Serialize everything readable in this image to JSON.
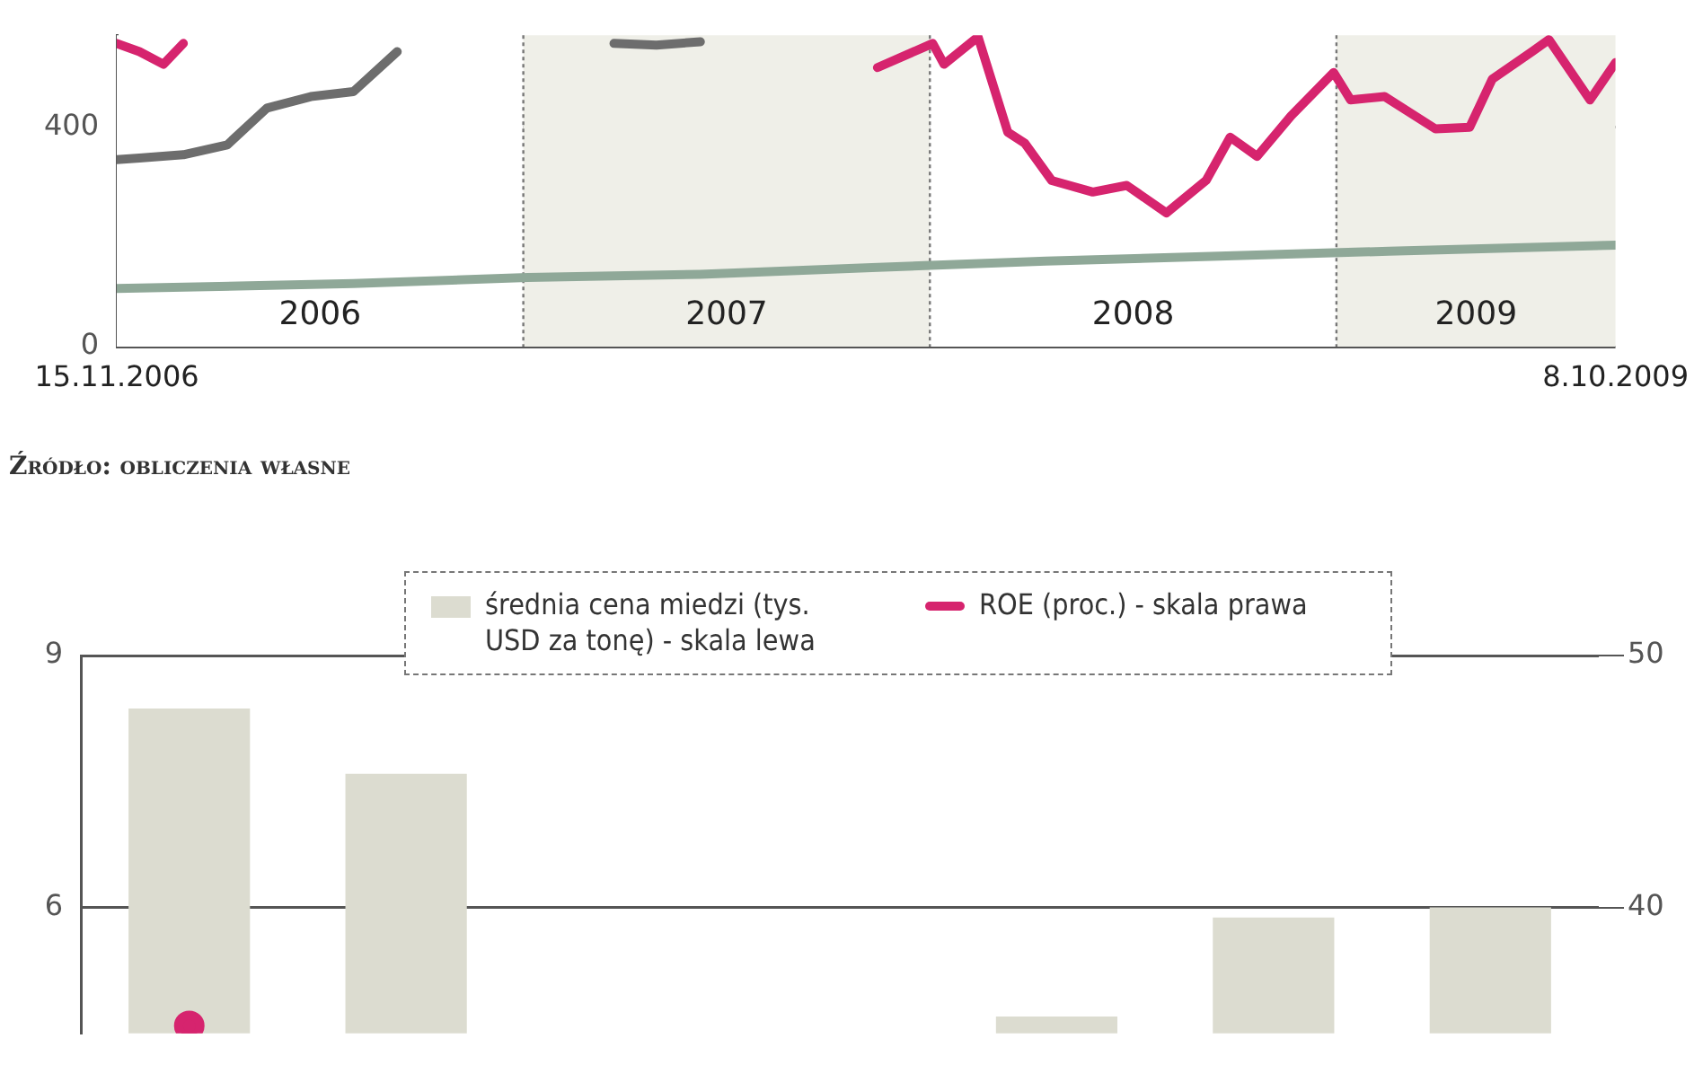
{
  "chart_data": [
    {
      "type": "line",
      "xlim": [
        "2006-11-15",
        "2009-10-08"
      ],
      "xticks": [
        {
          "value": "2006-11-15",
          "label": "15.11.2006"
        },
        {
          "value": "2009-10-08",
          "label": "8.10.2009"
        }
      ],
      "ylim": [
        0,
        568
      ],
      "yticks": [
        0,
        400
      ],
      "grid": "y",
      "legend": false,
      "marker": "none",
      "bands": [
        {
          "axis": "x",
          "from": "2006-11-15",
          "to": "2007-08-29",
          "label": "2006",
          "color": "#ffffff"
        },
        {
          "axis": "x",
          "from": "2007-08-29",
          "to": "2008-06-11",
          "label": "2007",
          "color": "#efefe8"
        },
        {
          "axis": "x",
          "from": "2008-06-11",
          "to": "2009-03-25",
          "label": "2008",
          "color": "#ffffff"
        },
        {
          "axis": "x",
          "from": "2009-03-25",
          "to": "2009-10-08",
          "label": "2009",
          "color": "#efefe8"
        }
      ],
      "series": [
        {
          "color": "#6d6d6d",
          "x": [
            "2006-11-15",
            "2006-12-01",
            "2007-01-01",
            "2007-02-01",
            "2007-03-01",
            "2007-04-01",
            "2007-05-01",
            "2007-06-01",
            "2007-07-01",
            "2007-10-15",
            "2007-11-01",
            "2007-12-01",
            "2008-01-01"
          ],
          "values": [
            341,
            344,
            350,
            368,
            435,
            456,
            465,
            538,
            null,
            null,
            553,
            550,
            556
          ]
        },
        {
          "color": "#8fa898",
          "x": [
            "2006-11-15",
            "2007-05-01",
            "2007-09-01",
            "2008-01-01",
            "2008-05-01",
            "2008-09-01",
            "2009-01-01",
            "2009-05-01",
            "2009-10-08"
          ],
          "values": [
            106,
            115,
            126,
            132,
            144,
            156,
            165,
            174,
            185
          ]
        },
        {
          "color": "#d6246e",
          "x": [
            "2006-11-15",
            "2006-12-01",
            "2006-12-18",
            "2007-01-01",
            "2007-01-15",
            "2008-04-15",
            "2008-05-05",
            "2008-06-13",
            "2008-06-21",
            "2008-07-15",
            "2008-08-05",
            "2008-08-17",
            "2008-09-05",
            "2008-10-04",
            "2008-10-28",
            "2008-11-25",
            "2008-12-23",
            "2009-01-09",
            "2009-01-28",
            "2009-02-21",
            "2009-03-23",
            "2009-04-04",
            "2009-04-28",
            "2009-06-03",
            "2009-06-27",
            "2009-07-13",
            "2009-08-10",
            "2009-08-22",
            "2009-09-20",
            "2009-10-08"
          ],
          "values": [
            553,
            538,
            515,
            553,
            null,
            null,
            509,
            553,
            515,
            565,
            391,
            371,
            303,
            282,
            294,
            244,
            303,
            382,
            347,
            421,
            500,
            450,
            456,
            397,
            400,
            488,
            538,
            560,
            450,
            518
          ]
        }
      ],
      "annotations": [
        "Źródło: obliczenia własne"
      ]
    },
    {
      "type": "bar",
      "categories": [
        null,
        null,
        null,
        null,
        null,
        null,
        null
      ],
      "ylim": [
        4.5,
        9
      ],
      "yticks": [
        6,
        9
      ],
      "y2lim": [
        35,
        50
      ],
      "y2ticks": [
        40,
        50
      ],
      "grid": "y",
      "legend": "top",
      "marker": "circle",
      "series": [
        {
          "name": "średnia cena miedzi (tys. USD za tonę) - skala lewa",
          "color": "#dcdcd0",
          "values": [
            8.37,
            7.59,
            null,
            null,
            4.7,
            5.88,
            6.0
          ]
        },
        {
          "name": "ROE (proc.) - skala prawa",
          "type": "line",
          "axis": "y2",
          "color": "#d6246e",
          "values": [
            35.3,
            null,
            null,
            null,
            null,
            null,
            null
          ]
        }
      ]
    }
  ]
}
